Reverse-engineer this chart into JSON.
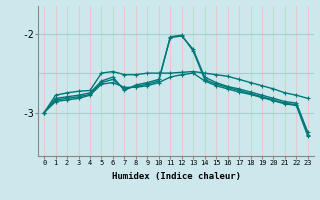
{
  "xlabel": "Humidex (Indice chaleur)",
  "bg_color": "#cce8ec",
  "vgrid_color": "#e8c8c8",
  "hgrid_color": "#aacccc",
  "line_color": "#007878",
  "xlim": [
    -0.5,
    23.5
  ],
  "ylim": [
    -3.55,
    -1.65
  ],
  "yticks": [
    -3,
    -2
  ],
  "xticks": [
    0,
    1,
    2,
    3,
    4,
    5,
    6,
    7,
    8,
    9,
    10,
    11,
    12,
    13,
    14,
    15,
    16,
    17,
    18,
    19,
    20,
    21,
    22,
    23
  ],
  "s1": [
    -3.0,
    -2.78,
    -2.75,
    -2.73,
    -2.72,
    -2.5,
    -2.48,
    -2.52,
    -2.52,
    -2.5,
    -2.5,
    -2.5,
    -2.49,
    -2.48,
    -2.5,
    -2.52,
    -2.54,
    -2.58,
    -2.62,
    -2.66,
    -2.7,
    -2.75,
    -2.78,
    -2.82
  ],
  "s2": [
    -3.0,
    -2.82,
    -2.8,
    -2.78,
    -2.75,
    -2.6,
    -2.55,
    -2.72,
    -2.65,
    -2.62,
    -2.58,
    -2.05,
    -2.03,
    -2.2,
    -2.55,
    -2.62,
    -2.67,
    -2.7,
    -2.74,
    -2.78,
    -2.82,
    -2.86,
    -2.88,
    -3.25
  ],
  "s3": [
    -3.0,
    -2.84,
    -2.82,
    -2.8,
    -2.77,
    -2.62,
    -2.58,
    -2.7,
    -2.67,
    -2.64,
    -2.6,
    -2.04,
    -2.02,
    -2.22,
    -2.58,
    -2.64,
    -2.68,
    -2.72,
    -2.76,
    -2.8,
    -2.84,
    -2.88,
    -2.9,
    -3.28
  ],
  "s4": [
    -3.0,
    -2.86,
    -2.84,
    -2.82,
    -2.78,
    -2.64,
    -2.62,
    -2.68,
    -2.68,
    -2.66,
    -2.62,
    -2.55,
    -2.52,
    -2.5,
    -2.6,
    -2.66,
    -2.7,
    -2.74,
    -2.77,
    -2.81,
    -2.85,
    -2.89,
    -2.91,
    -3.3
  ]
}
